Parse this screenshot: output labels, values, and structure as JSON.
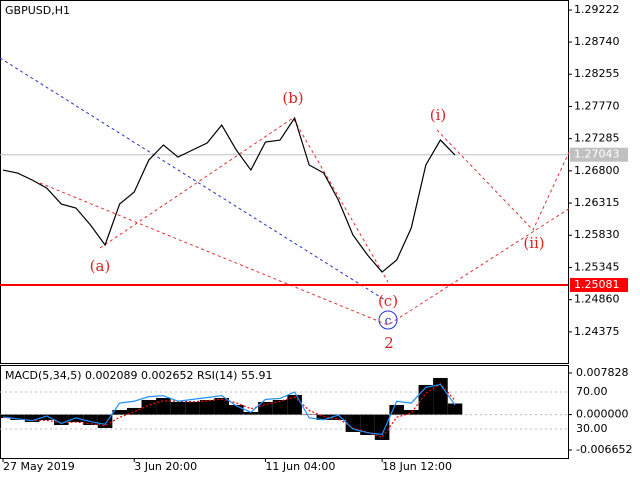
{
  "chart_data": [
    {
      "type": "line",
      "title": "GBPUSD,H1",
      "series": [
        {
          "color": "#000000",
          "values": [
            1.26812,
            1.26767,
            1.26662,
            1.26541,
            1.263,
            1.2624,
            1.25984,
            1.25683,
            1.263,
            1.26481,
            1.26963,
            1.27189,
            1.27008,
            1.27114,
            1.27219,
            1.2749,
            1.27114,
            1.26812,
            1.27234,
            1.27264,
            1.27596,
            1.26888,
            1.26767,
            1.26361,
            1.25834,
            1.25532,
            1.25276,
            1.25457,
            1.25939,
            1.26888,
            1.27264,
            1.27038
          ]
        }
      ],
      "ylim": [
        1.23906,
        1.29373
      ],
      "yticks": [
        1.29222,
        {
          "value": 1.2874,
          "label": "1.28740"
        },
        1.28255,
        {
          "value": 1.2777,
          "label": "1.27770"
        },
        1.27285,
        {
          "value": 1.268,
          "label": "1.26800"
        },
        1.26315,
        {
          "value": 1.2583,
          "label": "1.25830"
        },
        1.25345,
        {
          "value": 1.2486,
          "label": "1.24860"
        },
        1.24375
      ],
      "current_price": {
        "value": 1.27043,
        "color": "#c0c0c0"
      },
      "level": {
        "value": 1.25081,
        "color": "#ff0000"
      },
      "annotations": [
        "(a)",
        "(b)",
        "(c)",
        "c",
        "2",
        "(i)",
        "(ii)"
      ]
    },
    {
      "type": "combo",
      "title": "MACD(5,34,5) 0.002089 0.002652 RSI(14) 55.91",
      "categories": [
        "27 May 2019",
        null,
        null,
        null,
        null,
        null,
        null,
        null,
        null,
        "3 Jun 20:00",
        null,
        null,
        null,
        null,
        null,
        null,
        null,
        null,
        "11 Jun 04:00",
        null,
        null,
        null,
        null,
        null,
        null,
        null,
        "18 Jun 12:00",
        null,
        null,
        null,
        null,
        null
      ],
      "series": [
        {
          "kind": "bar",
          "color": "#000000",
          "values": [
            -0.00063,
            -0.00101,
            -0.00138,
            -0.00101,
            -0.00195,
            -0.00138,
            -0.00195,
            -0.00251,
            0.00087,
            0.00125,
            0.00275,
            0.00313,
            0.00238,
            0.00238,
            0.00275,
            0.00313,
            0.00181,
            0.0005,
            0.00238,
            0.00275,
            0.00369,
            -7e-05,
            -0.00101,
            -0.00101,
            -0.00326,
            -0.00383,
            -0.00477,
            0.00181,
            0.00087,
            0.00557,
            0.00689,
            0.002089
          ]
        },
        {
          "kind": "line",
          "color": "#ff0000",
          "dashed": true,
          "values": [
            -0.0005,
            -0.0008,
            -0.0011,
            -0.0011,
            -0.0015,
            -0.0014,
            -0.0017,
            -0.0021,
            -0.0005,
            0.0005,
            0.0018,
            0.0026,
            0.0025,
            0.0024,
            0.0026,
            0.0029,
            0.0022,
            0.0011,
            0.0019,
            0.0025,
            0.0033,
            0.0008,
            -0.0004,
            -0.0008,
            -0.0025,
            -0.0033,
            -0.0043,
            -0.0005,
            0.0003,
            0.004,
            0.0058,
            0.002652
          ]
        },
        {
          "kind": "line",
          "axis": "y2",
          "color": "#1e90ff",
          "values": [
            43,
            41,
            39,
            44,
            36,
            42,
            38,
            35,
            58,
            60,
            65,
            66,
            60,
            62,
            64,
            66,
            55,
            48,
            62,
            63,
            70,
            42,
            40,
            45,
            30,
            26,
            24,
            60,
            58,
            75,
            78,
            55.91
          ]
        }
      ],
      "ylim": [
        -0.00816,
        0.00914
      ],
      "yticks": [
        0.007828,
        {
          "value": 0,
          "label": "0.000000"
        },
        -0.006652
      ],
      "y2lim": [
        -1.4,
        98.1
      ],
      "y2ticks": [
        {
          "value": 70,
          "label": "70.00"
        },
        {
          "value": 30,
          "label": "30.00"
        }
      ]
    }
  ]
}
